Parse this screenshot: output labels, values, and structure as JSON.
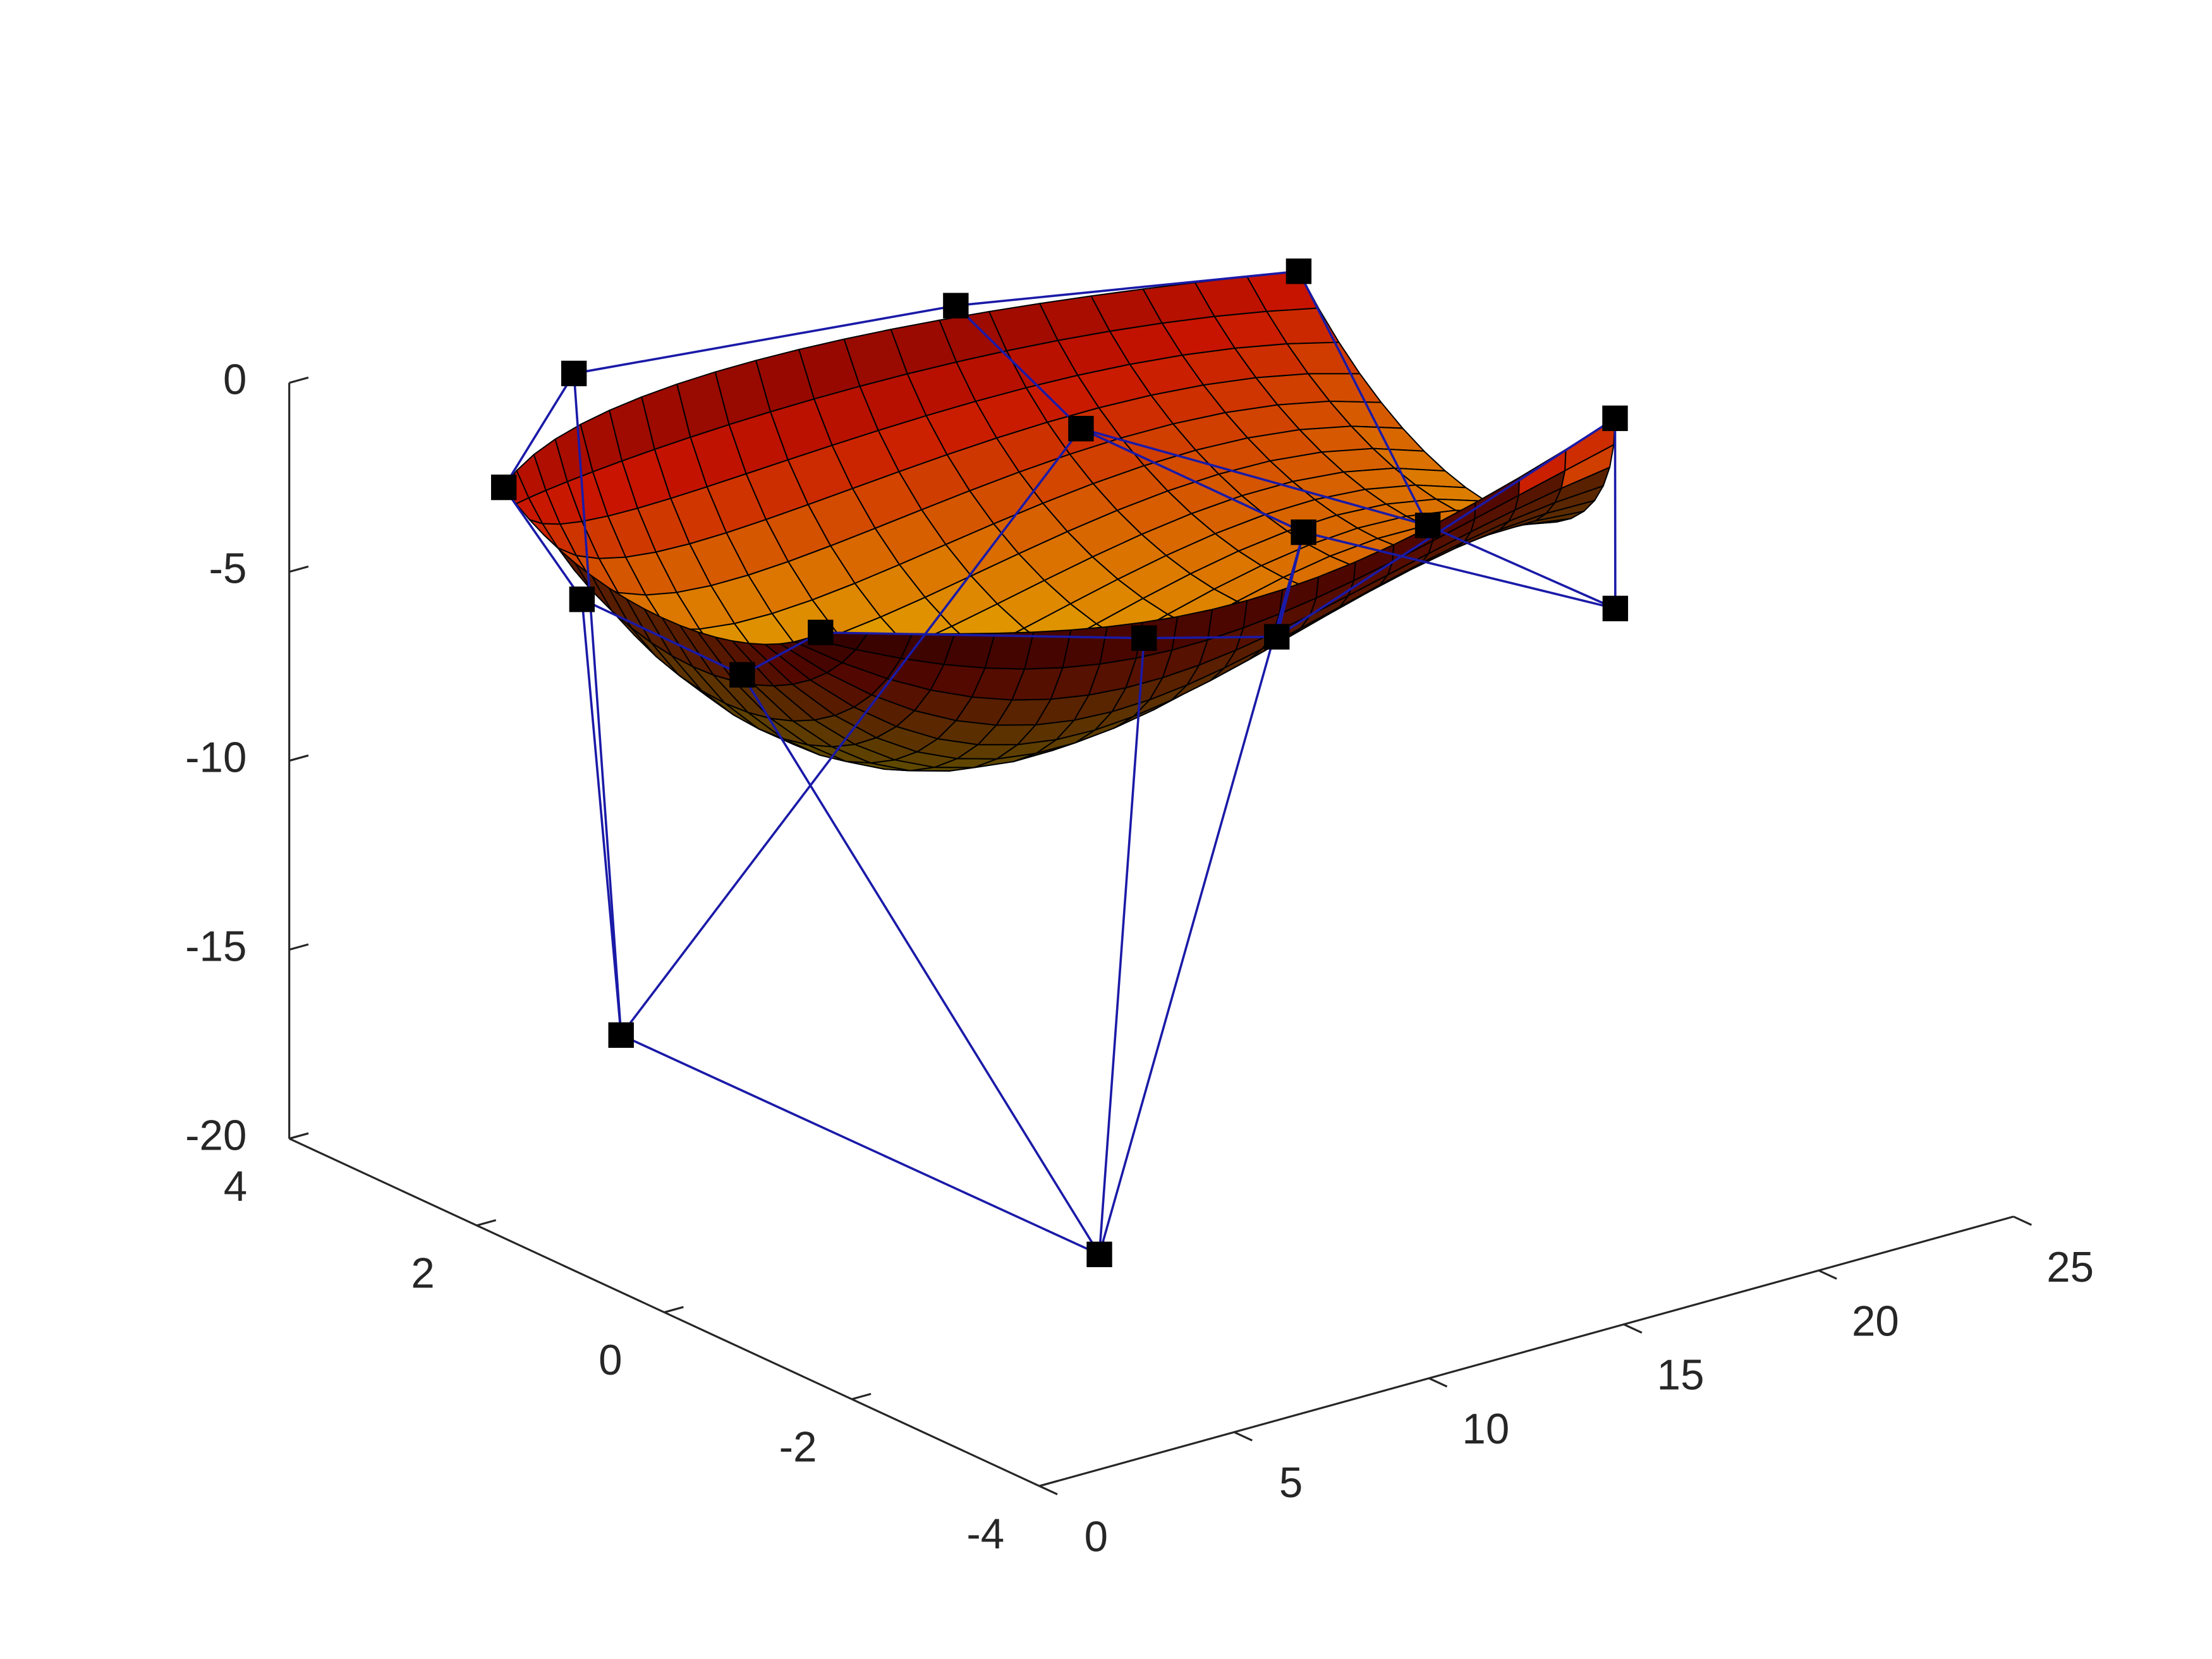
{
  "chart_data": {
    "type": "surface",
    "xlim": [
      0,
      25
    ],
    "xticks": [
      0,
      5,
      10,
      15,
      20,
      25
    ],
    "ylim": [
      -4,
      4
    ],
    "yticks": [
      -4,
      -2,
      0,
      2,
      4
    ],
    "zlim": [
      -20,
      0
    ],
    "zticks": [
      -20,
      -15,
      -10,
      -5,
      0
    ],
    "control_points": {
      "x": [
        [
          3.1,
          4.9,
          14.7,
          23.5
        ],
        [
          2.7,
          2.5,
          13.1,
          22.0
        ],
        [
          2.0,
          9.0,
          14.0,
          22.0
        ],
        [
          0.4,
          7.5,
          8.5,
          24.4
        ]
      ],
      "y": [
        [
          3,
          3,
          3,
          3
        ],
        [
          2,
          1.5,
          1,
          1
        ],
        [
          0,
          -0.9,
          -1,
          -1
        ],
        [
          -1.5,
          -2,
          -3,
          0
        ]
      ],
      "z": [
        [
          -2.5,
          0,
          -1.0,
          -2.6
        ],
        [
          -4.2,
          -15.1,
          -1.5,
          -6.6
        ],
        [
          -3.7,
          -20,
          -2.2,
          -6.5
        ],
        [
          -0.4,
          -2.0,
          -1.1,
          -3.3
        ]
      ]
    },
    "net_color": "#1a1aa8",
    "marker_color": "#000000",
    "edge_color": "#000000",
    "colormap": [
      "#e6c800",
      "#dc7800",
      "#c81400",
      "#6e0000"
    ]
  }
}
